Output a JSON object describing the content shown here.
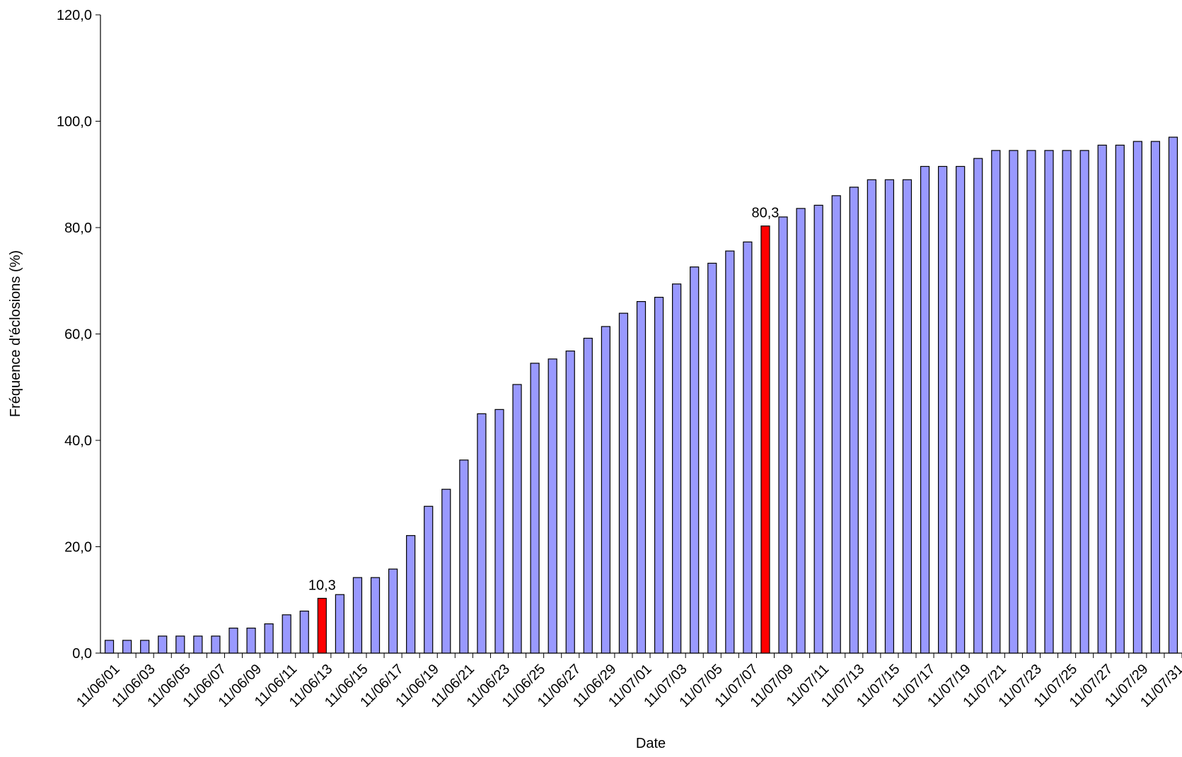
{
  "chart_data": {
    "type": "bar",
    "x_label": "Date",
    "y_label": "Fréquence d'éclosions (%)",
    "categories": [
      "11/06/01",
      null,
      "11/06/03",
      null,
      "11/06/05",
      null,
      "11/06/07",
      null,
      "11/06/09",
      null,
      "11/06/11",
      null,
      "11/06/13",
      null,
      "11/06/15",
      null,
      "11/06/17",
      null,
      "11/06/19",
      null,
      "11/06/21",
      null,
      "11/06/23",
      null,
      "11/06/25",
      null,
      "11/06/27",
      null,
      "11/06/29",
      null,
      "11/07/01",
      null,
      "11/07/03",
      null,
      "11/07/05",
      null,
      "11/07/07",
      null,
      "11/07/09",
      null,
      "11/07/11",
      null,
      "11/07/13",
      null,
      "11/07/15",
      null,
      "11/07/17",
      null,
      "11/07/19",
      null,
      "11/07/21",
      null,
      "11/07/23",
      null,
      "11/07/25",
      null,
      "11/07/27",
      null,
      "11/07/29",
      null,
      "11/07/31"
    ],
    "values": [
      2.4,
      2.4,
      2.4,
      3.2,
      3.2,
      3.2,
      3.2,
      4.7,
      4.7,
      5.5,
      7.2,
      7.9,
      10.3,
      11.0,
      14.2,
      14.2,
      15.8,
      22.1,
      27.6,
      30.8,
      36.3,
      45.0,
      45.8,
      50.5,
      54.5,
      55.3,
      56.8,
      59.2,
      61.4,
      63.9,
      66.1,
      66.9,
      69.4,
      72.6,
      73.3,
      75.6,
      77.3,
      80.3,
      82.0,
      83.6,
      84.2,
      86.0,
      87.6,
      89.0,
      89.0,
      89.0,
      91.5,
      91.5,
      91.5,
      93.0,
      94.5,
      94.5,
      94.5,
      94.5,
      94.5,
      94.5,
      95.5,
      95.5,
      96.2,
      96.2,
      97.0
    ],
    "value_labels": [
      null,
      null,
      null,
      null,
      null,
      null,
      null,
      null,
      null,
      null,
      null,
      null,
      "10,3",
      null,
      null,
      null,
      null,
      null,
      null,
      null,
      null,
      null,
      null,
      null,
      null,
      null,
      null,
      null,
      null,
      null,
      null,
      null,
      null,
      null,
      null,
      null,
      null,
      "80,3",
      null,
      null,
      null,
      null,
      null,
      null,
      null,
      null,
      null,
      null,
      null,
      null,
      null,
      null,
      null,
      null,
      null,
      null,
      null,
      null,
      null,
      null,
      null
    ],
    "color": "#9999ff",
    "highlight_color": "#ff0000",
    "ylim": [
      0,
      120
    ],
    "yticks": [
      {
        "value": 0,
        "label": "0,0"
      },
      {
        "value": 20,
        "label": "20,0"
      },
      {
        "value": 40,
        "label": "40,0"
      },
      {
        "value": 60,
        "label": "60,0"
      },
      {
        "value": 80,
        "label": "80,0"
      },
      {
        "value": 100,
        "label": "100,0"
      },
      {
        "value": 120,
        "label": "120,0"
      }
    ],
    "grid": false
  }
}
